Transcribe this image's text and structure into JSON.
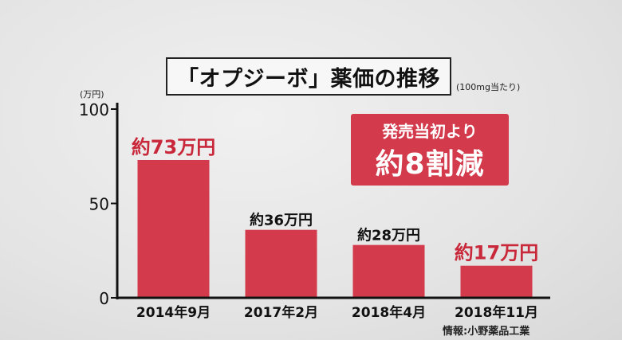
{
  "title": "「オプジーボ」薬価の推移",
  "subtitle": "(100mg当たり)",
  "unit_label": "(万円)",
  "source": "情報:小野薬品工業",
  "callout": {
    "line1": "発売当初より",
    "line2": "約8割減"
  },
  "colors": {
    "bar": "#d33a4c",
    "highlight_label": "#c8283a",
    "normal_label": "#111111",
    "axis": "#111111"
  },
  "chart_data": {
    "type": "bar",
    "title": "「オプジーボ」薬価の推移",
    "ylabel": "(万円)",
    "categories": [
      "2014年9月",
      "2017年2月",
      "2018年4月",
      "2018年11月"
    ],
    "values": [
      73,
      36,
      28,
      17
    ],
    "data_labels": [
      "約73万円",
      "約36万円",
      "約28万円",
      "約17万円"
    ],
    "highlight": [
      true,
      false,
      false,
      true
    ],
    "yticks": [
      0,
      50,
      100
    ],
    "ylim": [
      0,
      100
    ],
    "grid": false
  }
}
